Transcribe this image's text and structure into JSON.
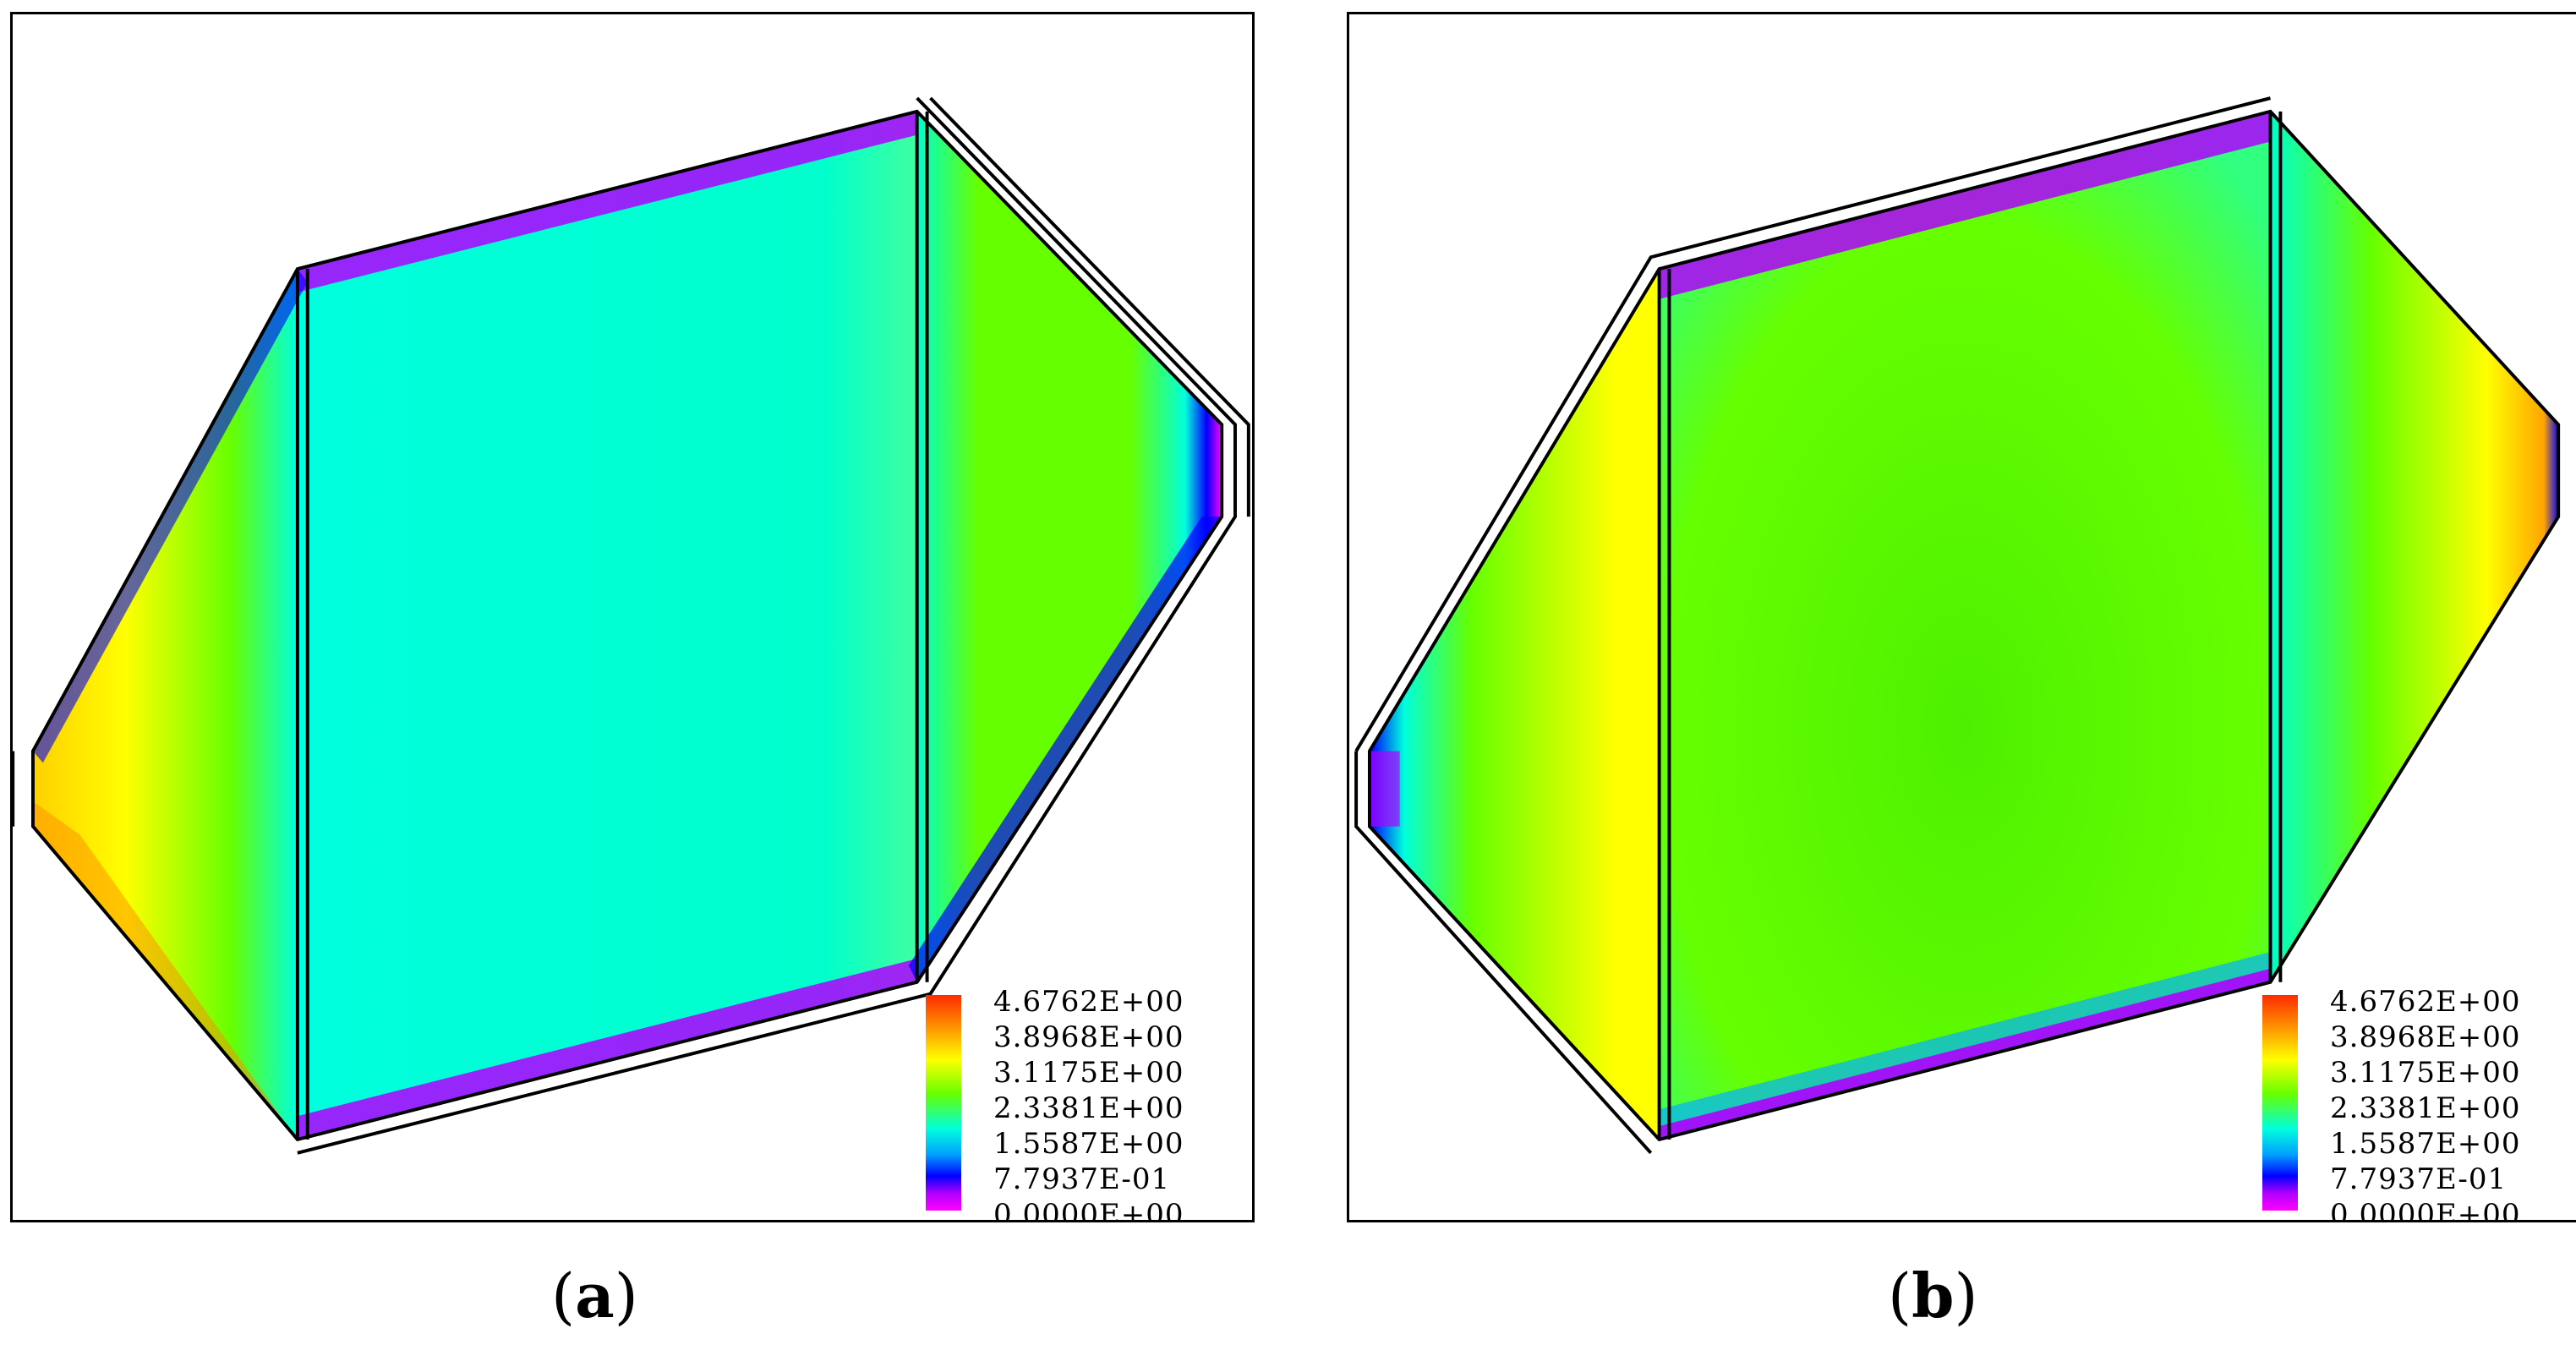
{
  "colors": {
    "magenta": "#ff00ff",
    "blue": "#0000ff",
    "cyan": "#00ffdd",
    "green": "#66ff00",
    "yellow": "#ffff00",
    "orange": "#ff8c00",
    "red": "#ff2a00"
  },
  "legend": {
    "labels": [
      "4.6762E+00",
      "3.8968E+00",
      "3.1175E+00",
      "2.3381E+00",
      "1.5587E+00",
      "7.7937E-01",
      "0.0000E+00"
    ]
  },
  "panels": [
    {
      "id": "a",
      "caption_letter": "a"
    },
    {
      "id": "b",
      "caption_letter": "b"
    }
  ]
}
